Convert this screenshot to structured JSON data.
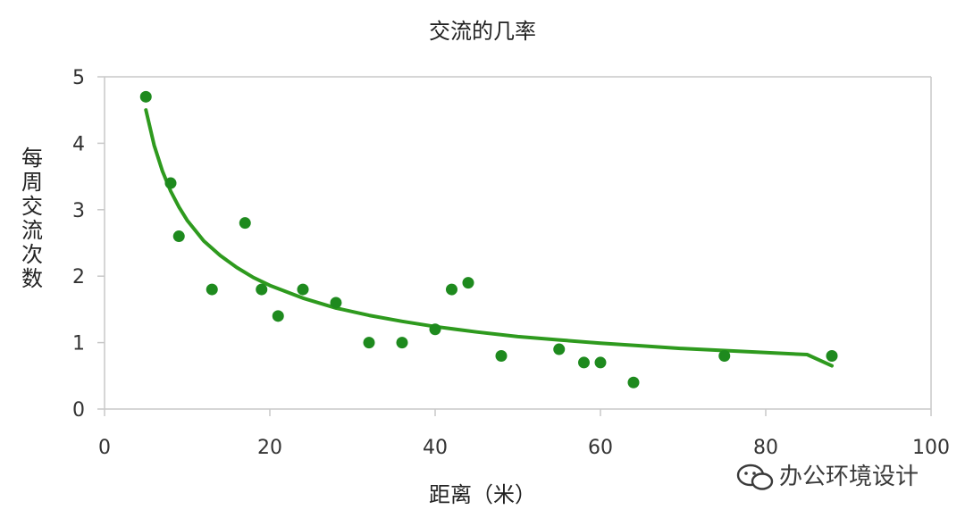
{
  "chart_data": {
    "type": "scatter",
    "title": "交流的几率",
    "xlabel": "距离（米）",
    "ylabel": "每周交流次数",
    "xlim": [
      0,
      100
    ],
    "ylim": [
      0,
      5
    ],
    "x_ticks": [
      0,
      20,
      40,
      60,
      80,
      100
    ],
    "y_ticks": [
      0,
      1,
      2,
      3,
      4,
      5
    ],
    "grid": false,
    "points": [
      {
        "x": 5,
        "y": 4.7
      },
      {
        "x": 8,
        "y": 3.4
      },
      {
        "x": 9,
        "y": 2.6
      },
      {
        "x": 13,
        "y": 1.8
      },
      {
        "x": 17,
        "y": 2.8
      },
      {
        "x": 19,
        "y": 1.8
      },
      {
        "x": 21,
        "y": 1.4
      },
      {
        "x": 24,
        "y": 1.8
      },
      {
        "x": 28,
        "y": 1.6
      },
      {
        "x": 32,
        "y": 1.0
      },
      {
        "x": 36,
        "y": 1.0
      },
      {
        "x": 40,
        "y": 1.2
      },
      {
        "x": 42,
        "y": 1.8
      },
      {
        "x": 44,
        "y": 1.9
      },
      {
        "x": 48,
        "y": 0.8
      },
      {
        "x": 55,
        "y": 0.9
      },
      {
        "x": 58,
        "y": 0.7
      },
      {
        "x": 60,
        "y": 0.7
      },
      {
        "x": 64,
        "y": 0.4
      },
      {
        "x": 75,
        "y": 0.8
      },
      {
        "x": 88,
        "y": 0.8
      }
    ],
    "trendline": {
      "type": "power",
      "x": [
        5,
        6,
        7,
        8,
        9,
        10,
        12,
        14,
        16,
        18,
        20,
        24,
        28,
        32,
        36,
        40,
        45,
        50,
        55,
        60,
        65,
        70,
        75,
        80,
        85,
        88
      ],
      "y": [
        4.5,
        3.97,
        3.58,
        3.28,
        3.04,
        2.84,
        2.53,
        2.31,
        2.13,
        1.98,
        1.86,
        1.67,
        1.52,
        1.41,
        1.32,
        1.24,
        1.16,
        1.09,
        1.04,
        0.99,
        0.95,
        0.91,
        0.88,
        0.85,
        0.82,
        0.65
      ]
    },
    "colors": {
      "points": "#1e8a1e",
      "trendline": "#2e9a1e",
      "axis": "#c8c8c8",
      "frame": "#c8c8c8"
    }
  },
  "watermark": {
    "text": "办公环境设计",
    "icon": "wechat-icon"
  }
}
